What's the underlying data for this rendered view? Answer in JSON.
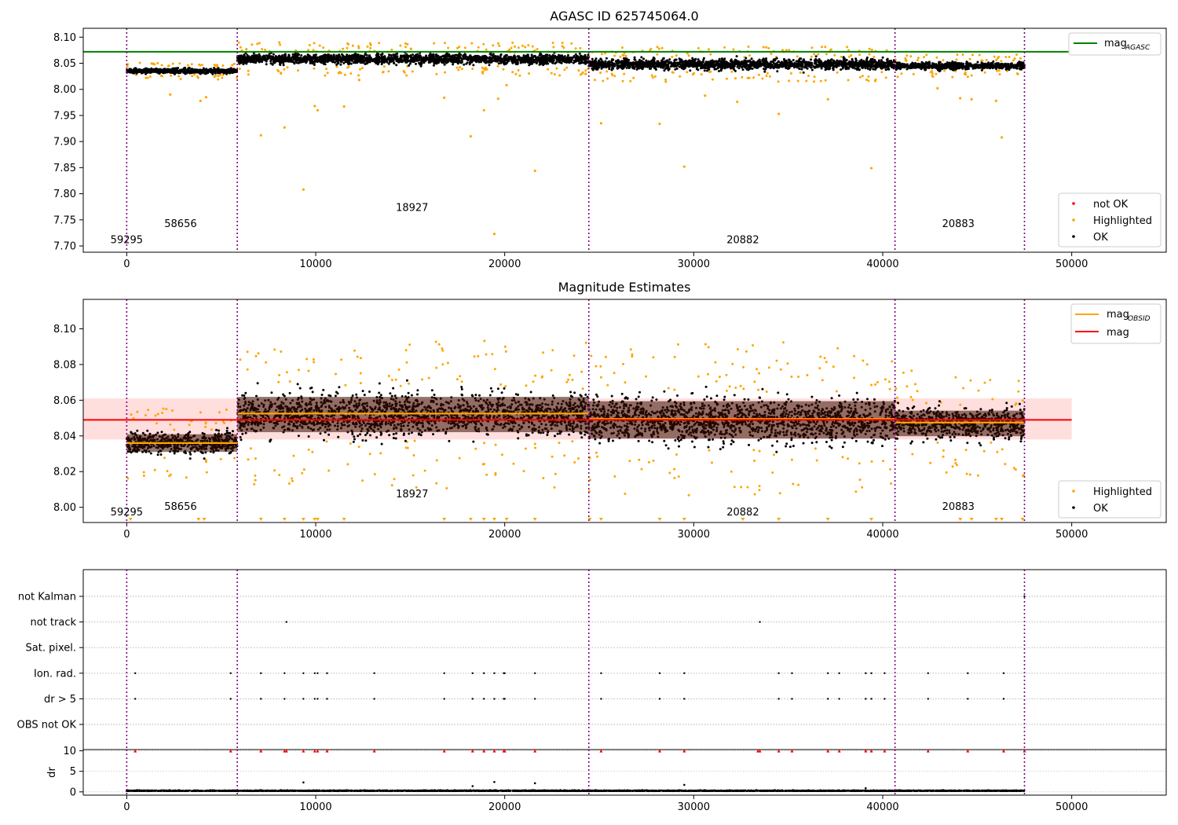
{
  "chart_data": [
    {
      "type": "scatter",
      "title": "AGASC ID 625745064.0",
      "xlabel": "",
      "ylabel": "",
      "xlim": [
        -2300,
        55000
      ],
      "ylim": [
        7.688,
        8.117
      ],
      "xticks": [
        0,
        10000,
        20000,
        30000,
        40000,
        50000
      ],
      "xtick_labels": [
        "0",
        "10000",
        "20000",
        "30000",
        "40000",
        "50000"
      ],
      "yticks": [
        7.7,
        7.75,
        7.8,
        7.85,
        7.9,
        7.95,
        8.0,
        8.05,
        8.1
      ],
      "ytick_labels": [
        "7.70",
        "7.75",
        "7.80",
        "7.85",
        "7.90",
        "7.95",
        "8.00",
        "8.05",
        "8.10"
      ],
      "obsid_boundaries": [
        0,
        5850,
        24450,
        40650,
        47500
      ],
      "obsid_labels": [
        {
          "text": "59295",
          "x": 0,
          "y": 7.705
        },
        {
          "text": "58656",
          "x": 2850,
          "y": 7.736
        },
        {
          "text": "18927",
          "x": 15100,
          "y": 7.767
        },
        {
          "text": "20882",
          "x": 32600,
          "y": 7.705
        },
        {
          "text": "20883",
          "x": 44000,
          "y": 7.736
        }
      ],
      "reference_line": {
        "name": "mag_AGASC",
        "y": 8.072,
        "x_range": [
          -2300,
          50000
        ],
        "color": "#008000"
      },
      "ok_bands": [
        {
          "x": [
            0,
            5850
          ],
          "center": 8.035,
          "spread": 0.008
        },
        {
          "x": [
            5850,
            24450
          ],
          "center": 8.058,
          "spread": 0.016
        },
        {
          "x": [
            24450,
            40650
          ],
          "center": 8.048,
          "spread": 0.017
        },
        {
          "x": [
            40650,
            47500
          ],
          "center": 8.045,
          "spread": 0.011
        }
      ],
      "highlighted_outliers": [
        {
          "x": 7100,
          "y": 7.912
        },
        {
          "x": 8350,
          "y": 7.927
        },
        {
          "x": 9350,
          "y": 7.808
        },
        {
          "x": 9950,
          "y": 7.968
        },
        {
          "x": 10100,
          "y": 7.96
        },
        {
          "x": 11500,
          "y": 7.967
        },
        {
          "x": 18200,
          "y": 7.91
        },
        {
          "x": 18900,
          "y": 7.96
        },
        {
          "x": 19450,
          "y": 7.723
        },
        {
          "x": 19650,
          "y": 7.982
        },
        {
          "x": 21600,
          "y": 7.844
        },
        {
          "x": 28200,
          "y": 7.934
        },
        {
          "x": 29500,
          "y": 7.852
        },
        {
          "x": 39400,
          "y": 7.849
        },
        {
          "x": 46300,
          "y": 7.908
        },
        {
          "x": 2300,
          "y": 7.99
        },
        {
          "x": 3900,
          "y": 7.978
        },
        {
          "x": 4200,
          "y": 7.985
        },
        {
          "x": 16800,
          "y": 7.984
        },
        {
          "x": 25100,
          "y": 7.935
        },
        {
          "x": 30600,
          "y": 7.988
        },
        {
          "x": 32300,
          "y": 7.976
        },
        {
          "x": 34500,
          "y": 7.953
        },
        {
          "x": 37100,
          "y": 7.981
        },
        {
          "x": 44100,
          "y": 7.983
        },
        {
          "x": 44700,
          "y": 7.981
        },
        {
          "x": 46000,
          "y": 7.978
        },
        {
          "x": 20100,
          "y": 8.008
        },
        {
          "x": 12300,
          "y": 8.018
        },
        {
          "x": 42900,
          "y": 8.002
        }
      ],
      "legend": {
        "placement": "lower right",
        "entries": [
          {
            "label": "not OK",
            "color": "#ff0000",
            "marker": "point"
          },
          {
            "label": "Highlighted",
            "color": "#ffa500",
            "marker": "point"
          },
          {
            "label": "OK",
            "color": "#000000",
            "marker": "point"
          }
        ],
        "line_legend_placement": "upper right",
        "line_entries": [
          {
            "label": "mag",
            "subscript": "AGASC",
            "color": "#008000"
          }
        ]
      }
    },
    {
      "type": "scatter",
      "title": "Magnitude Estimates",
      "xlabel": "",
      "ylabel": "",
      "xlim": [
        -2300,
        55000
      ],
      "ylim": [
        7.9915,
        8.1165
      ],
      "xticks": [
        0,
        10000,
        20000,
        30000,
        40000,
        50000
      ],
      "xtick_labels": [
        "0",
        "10000",
        "20000",
        "30000",
        "40000",
        "50000"
      ],
      "yticks": [
        8.0,
        8.02,
        8.04,
        8.06,
        8.08,
        8.1
      ],
      "ytick_labels": [
        "8.00",
        "8.02",
        "8.04",
        "8.06",
        "8.08",
        "8.10"
      ],
      "obsid_boundaries": [
        0,
        5850,
        24450,
        40650,
        47500
      ],
      "obsid_labels": [
        {
          "text": "59295",
          "x": 0,
          "y": 7.9955
        },
        {
          "text": "58656",
          "x": 2850,
          "y": 7.9985
        },
        {
          "text": "18927",
          "x": 15100,
          "y": 8.0055
        },
        {
          "text": "20882",
          "x": 32600,
          "y": 7.9955
        },
        {
          "text": "20883",
          "x": 44000,
          "y": 7.9985
        }
      ],
      "mag_line": {
        "name": "mag",
        "y": 8.049,
        "x_range": [
          -2300,
          50000
        ],
        "band": [
          8.038,
          8.061
        ],
        "color": "#ff0000"
      },
      "obsid_mags": [
        {
          "x": [
            0,
            5850
          ],
          "y": 8.036
        },
        {
          "x": [
            5850,
            24450
          ],
          "y": 8.0525
        },
        {
          "x": [
            24450,
            40650
          ],
          "y": 8.0495
        },
        {
          "x": [
            40650,
            47500
          ],
          "y": 8.0475
        }
      ],
      "ok_bands": [
        {
          "x": [
            0,
            5850
          ],
          "center": 8.036,
          "spread": 0.009
        },
        {
          "x": [
            5850,
            24450
          ],
          "center": 8.052,
          "spread": 0.018
        },
        {
          "x": [
            24450,
            40650
          ],
          "center": 8.049,
          "spread": 0.019
        },
        {
          "x": [
            40650,
            47500
          ],
          "center": 8.047,
          "spread": 0.013
        }
      ],
      "clipped_markers_x": [
        200,
        3800,
        4100,
        7100,
        8350,
        9350,
        9950,
        10100,
        11500,
        16800,
        18200,
        18900,
        19450,
        20100,
        21600,
        24500,
        25100,
        28200,
        29500,
        32600,
        34500,
        37100,
        39400,
        44100,
        44700,
        46000,
        46300,
        47400
      ],
      "legend": {
        "placement": "lower right",
        "entries": [
          {
            "label": "Highlighted",
            "color": "#ffa500",
            "marker": "point"
          },
          {
            "label": "OK",
            "color": "#000000",
            "marker": "point"
          }
        ],
        "line_legend_placement": "upper right",
        "line_entries": [
          {
            "label": "mag",
            "subscript": "OBSID",
            "color": "#ffa500"
          },
          {
            "label": "mag",
            "subscript": "",
            "color": "#ff0000"
          }
        ]
      }
    },
    {
      "type": "scatter",
      "title": "",
      "xlabel": "",
      "ylabel": "",
      "xlim": [
        -2300,
        55000
      ],
      "categories": [
        "not Kalman",
        "not track",
        "Sat. pixel.",
        "Ion. rad.",
        "dr > 5",
        "OBS not OK"
      ],
      "flag_points": {
        "not track": [
          8450,
          33500
        ],
        "Ion. rad.": [
          450,
          5500,
          7100,
          8350,
          9350,
          9950,
          10100,
          10600,
          13100,
          16800,
          18300,
          18900,
          19450,
          19950,
          20000,
          21600,
          25100,
          28200,
          29500,
          34500,
          35200,
          37100,
          37700,
          39100,
          39400,
          40100,
          42400,
          44500,
          46400
        ],
        "dr > 5": [
          450,
          5500,
          7100,
          8350,
          9350,
          9950,
          10100,
          10600,
          13100,
          16800,
          18300,
          18900,
          19450,
          19950,
          20000,
          21600,
          25100,
          28200,
          29500,
          34500,
          35200,
          37100,
          37700,
          39100,
          39400,
          40100,
          42400,
          44500,
          46400
        ],
        "not Kalman": [
          47500
        ]
      },
      "obsid_boundaries": [
        0,
        5850,
        24450,
        40650,
        47500
      ]
    },
    {
      "type": "scatter",
      "title": "",
      "xlabel": "",
      "ylabel": "dr",
      "xlim": [
        -2300,
        55000
      ],
      "ylim": [
        -0.8,
        10.3
      ],
      "xticks": [
        0,
        10000,
        20000,
        30000,
        40000,
        50000
      ],
      "xtick_labels": [
        "0",
        "10000",
        "20000",
        "30000",
        "40000",
        "50000"
      ],
      "yticks": [
        0,
        5,
        10
      ],
      "ytick_labels": [
        "0",
        "5",
        "10"
      ],
      "capped_points_x": [
        450,
        5500,
        7100,
        8350,
        8450,
        9350,
        9950,
        10100,
        10600,
        13100,
        16800,
        18300,
        18900,
        19450,
        19950,
        20000,
        21600,
        25100,
        28200,
        29500,
        33400,
        33500,
        34500,
        35200,
        37100,
        37700,
        39100,
        39400,
        40100,
        42400,
        44500,
        46400,
        47500
      ],
      "outliers": [
        {
          "x": 9350,
          "y": 2.3
        },
        {
          "x": 19450,
          "y": 2.4
        },
        {
          "x": 21600,
          "y": 2.1
        },
        {
          "x": 29500,
          "y": 1.7
        },
        {
          "x": 18300,
          "y": 1.4
        },
        {
          "x": 39100,
          "y": 0.9
        }
      ],
      "baseline": {
        "range": [
          0,
          47500
        ],
        "center": 0.2,
        "spread": 0.25
      },
      "obsid_boundaries": [
        0,
        5850,
        24450,
        40650,
        47500
      ]
    }
  ]
}
